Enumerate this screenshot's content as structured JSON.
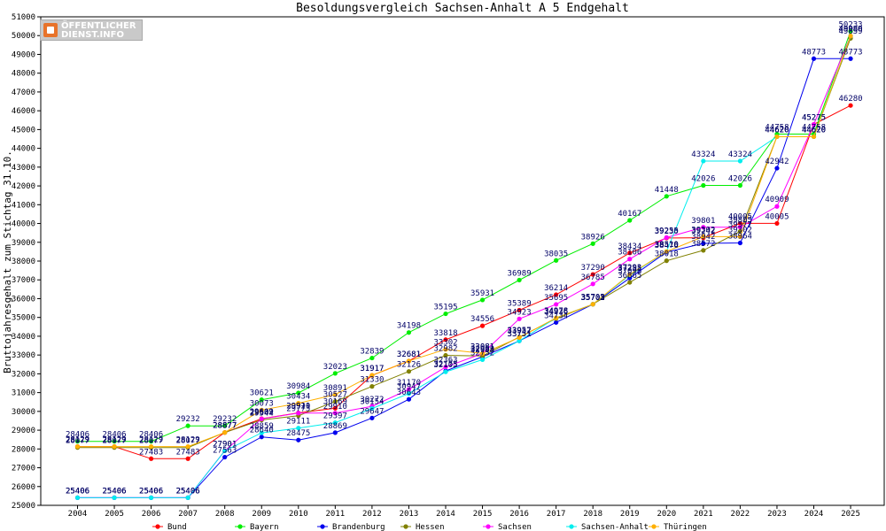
{
  "logo": {
    "line1": "ÖFFENTLICHER",
    "line2": "DIENST.INFO"
  },
  "chart_data": {
    "type": "line",
    "title": "Besoldungsvergleich Sachsen-Anhalt A 5 Endgehalt",
    "xlabel": "",
    "ylabel": "Bruttojahresgehalt zum Stichtag 31.10.",
    "categories": [
      "2004",
      "2005",
      "2006",
      "2007",
      "2008",
      "2009",
      "2010",
      "2011",
      "2012",
      "2013",
      "2014",
      "2015",
      "2016",
      "2017",
      "2018",
      "2019",
      "2020",
      "2021",
      "2022",
      "2023",
      "2024",
      "2025"
    ],
    "ylim": [
      25000,
      51000
    ],
    "yticks": [
      25000,
      26000,
      27000,
      28000,
      29000,
      30000,
      31000,
      32000,
      33000,
      34000,
      35000,
      36000,
      37000,
      38000,
      39000,
      40000,
      41000,
      42000,
      43000,
      44000,
      45000,
      46000,
      47000,
      48000,
      49000,
      50000,
      51000
    ],
    "grid": false,
    "legend_position": "bottom",
    "series": [
      {
        "name": "Bund",
        "color": "#ff0000",
        "values": [
          28129,
          28129,
          27483,
          27483,
          28877,
          29609,
          29920,
          30169,
          31917,
          32681,
          33818,
          34556,
          35389,
          36214,
          37290,
          38434,
          39230,
          39242,
          40005,
          40005,
          45275,
          46280
        ]
      },
      {
        "name": "Bayern",
        "color": "#00ee00",
        "values": [
          28406,
          28406,
          28406,
          29232,
          29232,
          30621,
          30984,
          32023,
          32839,
          34198,
          35195,
          35931,
          36989,
          38035,
          38926,
          40167,
          41448,
          42026,
          42026,
          44758,
          44758,
          50233
        ]
      },
      {
        "name": "Brandenburg",
        "color": "#0000ee",
        "values": [
          25406,
          25406,
          25406,
          25406,
          27563,
          28640,
          28475,
          28869,
          29647,
          30643,
          32153,
          32908,
          33751,
          34734,
          35702,
          37098,
          38476,
          38942,
          38964,
          42942,
          48773,
          48773
        ]
      },
      {
        "name": "Hessen",
        "color": "#808000",
        "values": [
          28077,
          28077,
          28077,
          28077,
          28877,
          29544,
          29773,
          30527,
          31330,
          32126,
          32982,
          32953,
          33957,
          34936,
          35705,
          36865,
          38018,
          38572,
          39577,
          44620,
          44620,
          49859
        ]
      },
      {
        "name": "Sachsen",
        "color": "#ff00ff",
        "values": [
          25406,
          25406,
          25406,
          25406,
          27901,
          29602,
          29911,
          29910,
          30272,
          31170,
          32363,
          33081,
          34923,
          35695,
          36785,
          38106,
          39255,
          39801,
          39805,
          40909,
          45275,
          49980
        ]
      },
      {
        "name": "Sachsen-Anhalt",
        "color": "#00eeee",
        "values": [
          25406,
          25406,
          25406,
          25406,
          27901,
          28859,
          29111,
          29397,
          30154,
          30947,
          32105,
          32752,
          33751,
          34978,
          35703,
          37255,
          38510,
          43324,
          43324,
          44620,
          44620,
          49980
        ]
      },
      {
        "name": "Thüringen",
        "color": "#ffb000",
        "values": [
          28129,
          28129,
          28129,
          28129,
          28877,
          30073,
          30434,
          30891,
          31917,
          32681,
          33302,
          33081,
          33932,
          34978,
          35703,
          37293,
          38510,
          39302,
          39302,
          44620,
          44620,
          49980
        ]
      }
    ]
  }
}
